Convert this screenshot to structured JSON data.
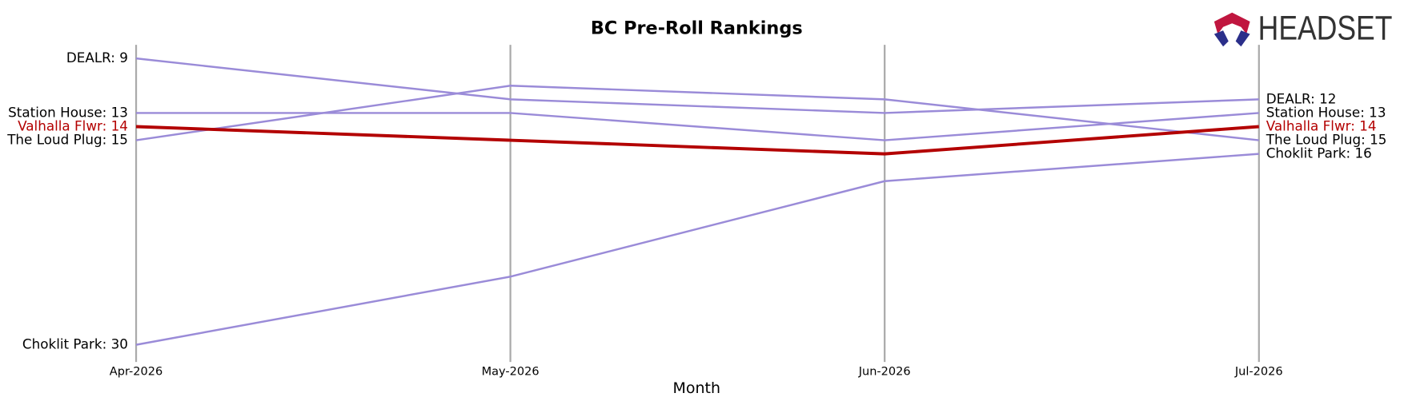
{
  "logo_text": "HEADSET",
  "chart_data": {
    "type": "bump",
    "title": "BC Pre-Roll Rankings",
    "xlabel": "Month",
    "categories": [
      "Apr-2026",
      "May-2026",
      "Jun-2026",
      "Jul-2026"
    ],
    "ylim": [
      31,
      8
    ],
    "series": [
      {
        "name": "DEALR",
        "color": "#9a8bd8",
        "values": [
          9,
          12,
          13,
          12
        ],
        "value_labels": [
          "DEALR: 9",
          null,
          null,
          "DEALR: 12"
        ]
      },
      {
        "name": "Station House",
        "color": "#9a8bd8",
        "values": [
          13,
          13,
          15,
          13
        ],
        "value_labels": [
          "Station House: 13",
          null,
          null,
          "Station House: 13"
        ]
      },
      {
        "name": "The Loud Plug",
        "color": "#9a8bd8",
        "values": [
          15,
          11,
          12,
          15
        ],
        "value_labels": [
          "The Loud Plug: 15",
          null,
          null,
          "The Loud Plug: 15"
        ]
      },
      {
        "name": "Choklit Park",
        "color": "#9a8bd8",
        "values": [
          30,
          25,
          18,
          16
        ],
        "value_labels": [
          "Choklit Park: 30",
          null,
          null,
          "Choklit Park: 16"
        ]
      },
      {
        "name": "Valhalla Flwr",
        "color": "#b30000",
        "highlight": true,
        "values": [
          14,
          15,
          16,
          14
        ],
        "value_labels": [
          "Valhalla Flwr: 14",
          null,
          null,
          "Valhalla Flwr: 14"
        ]
      }
    ]
  }
}
